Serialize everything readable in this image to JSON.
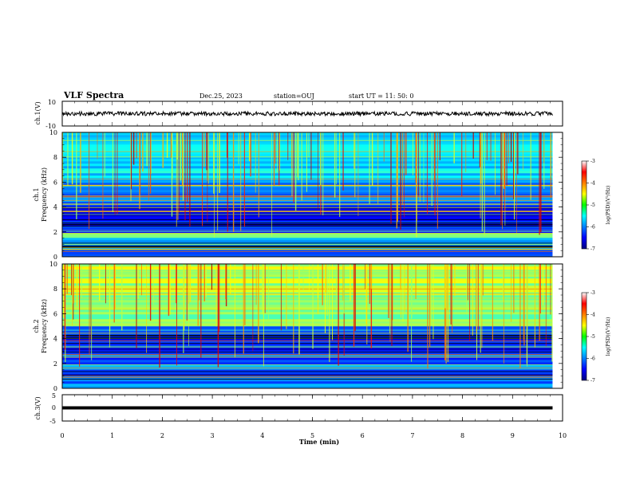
{
  "header": {
    "title": "VLF Spectra",
    "date": "Dec.25, 2023",
    "station": "station=OUJ",
    "start": "start  UT  =   11: 50: 0"
  },
  "chart_data": [
    {
      "type": "line",
      "panel": "ch1-waveform",
      "ylabel": "ch.1(V)",
      "ylim": [
        -10,
        10
      ],
      "yticks": [
        "10",
        "-10"
      ],
      "xlim": [
        0,
        10
      ],
      "series": [
        {
          "x": [
            0,
            9.8
          ],
          "y": [
            0,
            0
          ]
        }
      ],
      "color": "#000000"
    },
    {
      "type": "heatmap",
      "panel": "ch1-spectrogram",
      "ylabel_top": "ch.1",
      "ylabel": "Frequency  (kHz)",
      "ylim": [
        0,
        10
      ],
      "yticks": [
        "0",
        "2",
        "4",
        "6",
        "8",
        "10"
      ],
      "xlim": [
        0,
        10
      ],
      "data_xmax": 9.8,
      "colorbar": {
        "label": "log(PSD)(V²/Hz)",
        "min": -7,
        "max": -3,
        "ticks": [
          "-3",
          "-4",
          "-5",
          "-6",
          "-7"
        ]
      },
      "bands": [
        {
          "f": [
            0,
            1.5
          ],
          "level": -6.0
        },
        {
          "f": [
            1.5,
            2.0
          ],
          "level": -5.1
        },
        {
          "f": [
            2.0,
            4.0
          ],
          "level": -6.5
        },
        {
          "f": [
            4.0,
            6.0
          ],
          "level": -6.1
        },
        {
          "f": [
            6.0,
            10.0
          ],
          "level": -5.6
        }
      ]
    },
    {
      "type": "heatmap",
      "panel": "ch2-spectrogram",
      "ylabel_top": "ch.2",
      "ylabel": "Frequency  (kHz)",
      "ylim": [
        0,
        10
      ],
      "yticks": [
        "0",
        "2",
        "4",
        "6",
        "8",
        "10"
      ],
      "xlim": [
        0,
        10
      ],
      "data_xmax": 9.8,
      "colorbar": {
        "label": "log(PSD)(V²/Hz)",
        "min": -7,
        "max": -3,
        "ticks": [
          "-3",
          "-4",
          "-5",
          "-6",
          "-7"
        ]
      },
      "bands": [
        {
          "f": [
            0,
            2.0
          ],
          "level": -6.1
        },
        {
          "f": [
            2.0,
            5.0
          ],
          "level": -6.4
        },
        {
          "f": [
            5.0,
            7.0
          ],
          "level": -5.0
        },
        {
          "f": [
            7.0,
            10.0
          ],
          "level": -4.8
        }
      ]
    },
    {
      "type": "line",
      "panel": "ch3-waveform",
      "ylabel": "ch.3(V)",
      "ylim": [
        -5,
        5
      ],
      "yticks": [
        "5",
        "0",
        "-5"
      ],
      "xlim": [
        0,
        10
      ],
      "xlabel": "Time  (min)",
      "xticks": [
        "0",
        "1",
        "2",
        "3",
        "4",
        "5",
        "6",
        "7",
        "8",
        "9",
        "10"
      ],
      "series": [
        {
          "x": [
            0,
            9.8
          ],
          "y": [
            0,
            0
          ]
        }
      ],
      "color": "#000000"
    }
  ]
}
